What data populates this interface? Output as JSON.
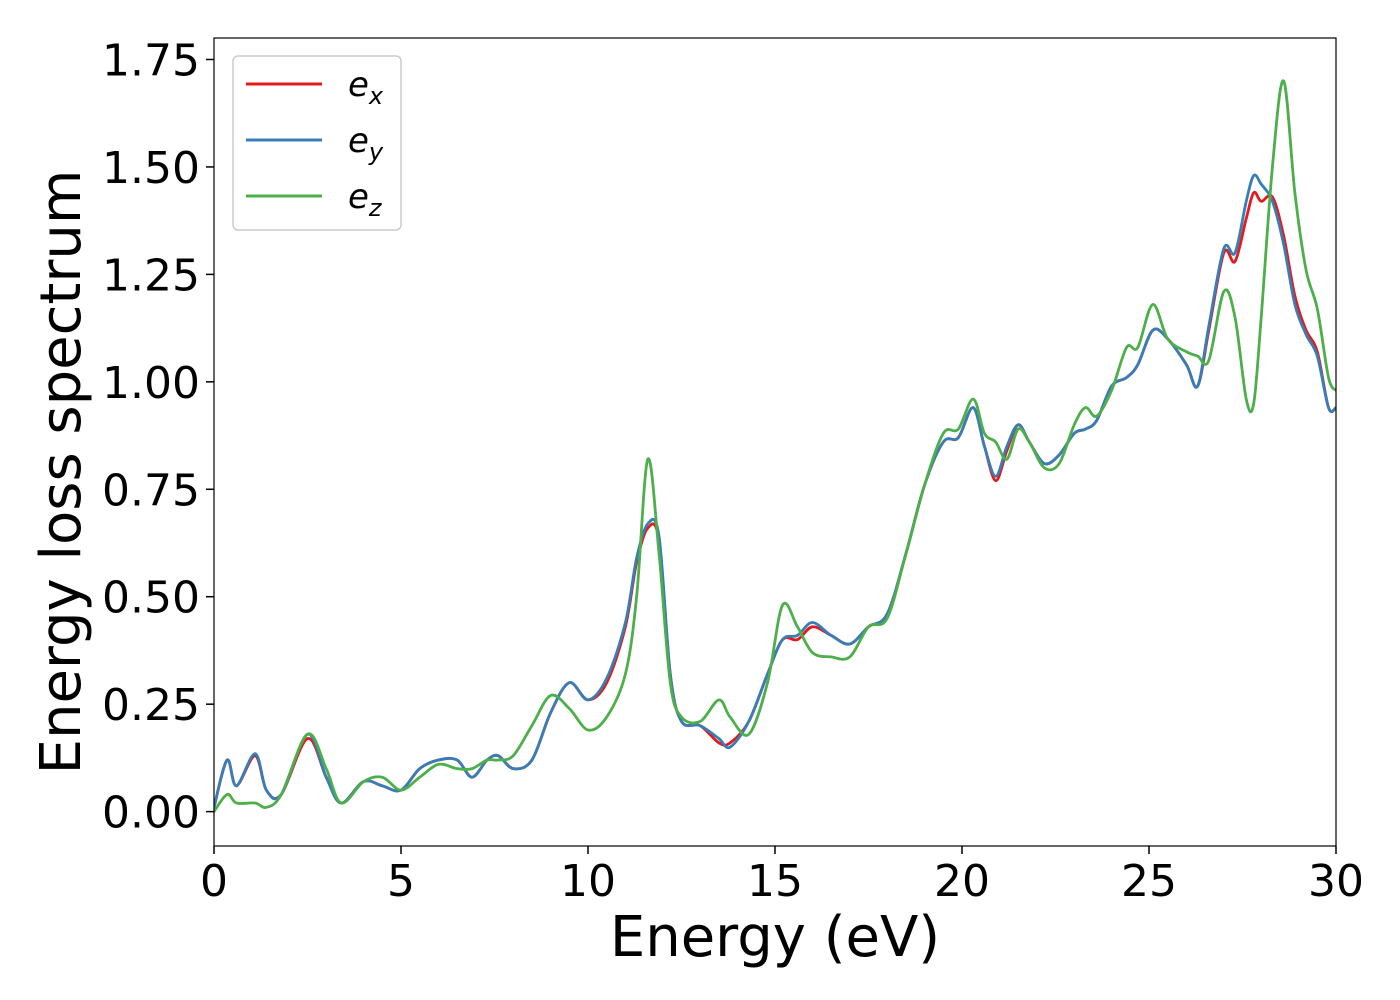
{
  "chart_data": {
    "type": "line",
    "title": "",
    "xlabel": "Energy (eV)",
    "ylabel": "Energy loss spectrum",
    "xlim": [
      0,
      30
    ],
    "ylim": [
      -0.08,
      1.8
    ],
    "xticks": [
      0,
      5,
      10,
      15,
      20,
      25,
      30
    ],
    "yticks": [
      0.0,
      0.25,
      0.5,
      0.75,
      1.0,
      1.25,
      1.5,
      1.75
    ],
    "xtick_labels": [
      "0",
      "5",
      "10",
      "15",
      "20",
      "25",
      "30"
    ],
    "ytick_labels": [
      "0.00",
      "0.25",
      "0.50",
      "0.75",
      "1.00",
      "1.25",
      "1.50",
      "1.75"
    ],
    "grid": false,
    "legend_position": "top-left",
    "x": [
      0,
      0.35,
      0.6,
      1.1,
      1.4,
      1.8,
      2.5,
      3.0,
      3.4,
      4.0,
      4.5,
      5.0,
      5.5,
      6.0,
      6.5,
      6.9,
      7.3,
      7.6,
      8.0,
      8.5,
      9.0,
      9.5,
      10.0,
      10.5,
      11.0,
      11.3,
      11.6,
      11.9,
      12.2,
      12.5,
      13.0,
      13.5,
      13.8,
      14.3,
      14.8,
      15.2,
      15.6,
      16.0,
      16.5,
      17.0,
      17.5,
      18.0,
      18.5,
      19.0,
      19.5,
      19.9,
      20.3,
      20.6,
      20.9,
      21.2,
      21.5,
      21.8,
      22.2,
      22.6,
      23.0,
      23.3,
      23.6,
      24.0,
      24.4,
      24.7,
      25.1,
      25.5,
      26.0,
      26.3,
      26.6,
      27.0,
      27.3,
      27.6,
      27.8,
      28.0,
      28.3,
      28.6,
      28.9,
      29.2,
      29.5,
      29.8,
      30.0
    ],
    "series": [
      {
        "name": "e",
        "subscript": "x",
        "color": "#e41a1c",
        "values": [
          0.01,
          0.12,
          0.06,
          0.13,
          0.05,
          0.04,
          0.17,
          0.08,
          0.02,
          0.07,
          0.06,
          0.05,
          0.1,
          0.12,
          0.12,
          0.08,
          0.12,
          0.13,
          0.1,
          0.12,
          0.23,
          0.3,
          0.26,
          0.3,
          0.43,
          0.58,
          0.66,
          0.63,
          0.32,
          0.21,
          0.2,
          0.16,
          0.16,
          0.21,
          0.32,
          0.4,
          0.4,
          0.43,
          0.41,
          0.39,
          0.43,
          0.46,
          0.6,
          0.76,
          0.86,
          0.87,
          0.94,
          0.85,
          0.77,
          0.84,
          0.9,
          0.86,
          0.81,
          0.83,
          0.88,
          0.89,
          0.91,
          0.99,
          1.01,
          1.04,
          1.12,
          1.1,
          1.04,
          0.99,
          1.12,
          1.3,
          1.28,
          1.38,
          1.44,
          1.42,
          1.43,
          1.34,
          1.2,
          1.12,
          1.07,
          0.94,
          0.94
        ]
      },
      {
        "name": "e",
        "subscript": "y",
        "color": "#377eb8",
        "values": [
          0.01,
          0.12,
          0.06,
          0.135,
          0.05,
          0.04,
          0.18,
          0.08,
          0.02,
          0.07,
          0.06,
          0.05,
          0.1,
          0.12,
          0.12,
          0.08,
          0.12,
          0.13,
          0.1,
          0.12,
          0.23,
          0.3,
          0.26,
          0.31,
          0.44,
          0.59,
          0.67,
          0.64,
          0.32,
          0.21,
          0.2,
          0.17,
          0.15,
          0.21,
          0.32,
          0.4,
          0.41,
          0.44,
          0.41,
          0.39,
          0.43,
          0.46,
          0.6,
          0.76,
          0.86,
          0.87,
          0.94,
          0.85,
          0.78,
          0.85,
          0.9,
          0.86,
          0.81,
          0.83,
          0.88,
          0.89,
          0.91,
          0.99,
          1.01,
          1.04,
          1.12,
          1.1,
          1.04,
          0.99,
          1.13,
          1.31,
          1.3,
          1.42,
          1.48,
          1.46,
          1.42,
          1.32,
          1.18,
          1.11,
          1.06,
          0.94,
          0.94
        ]
      },
      {
        "name": "e",
        "subscript": "z",
        "color": "#4daf4a",
        "values": [
          0.0,
          0.04,
          0.02,
          0.02,
          0.01,
          0.04,
          0.18,
          0.1,
          0.02,
          0.07,
          0.08,
          0.05,
          0.08,
          0.11,
          0.1,
          0.1,
          0.12,
          0.12,
          0.13,
          0.2,
          0.27,
          0.24,
          0.19,
          0.22,
          0.32,
          0.5,
          0.82,
          0.6,
          0.3,
          0.22,
          0.21,
          0.26,
          0.22,
          0.18,
          0.3,
          0.48,
          0.43,
          0.37,
          0.36,
          0.36,
          0.43,
          0.45,
          0.6,
          0.76,
          0.88,
          0.89,
          0.96,
          0.88,
          0.86,
          0.82,
          0.89,
          0.86,
          0.8,
          0.81,
          0.9,
          0.94,
          0.92,
          0.98,
          1.08,
          1.08,
          1.18,
          1.1,
          1.07,
          1.06,
          1.05,
          1.21,
          1.15,
          0.96,
          0.95,
          1.15,
          1.5,
          1.7,
          1.44,
          1.26,
          1.17,
          1.01,
          0.98
        ]
      }
    ]
  }
}
